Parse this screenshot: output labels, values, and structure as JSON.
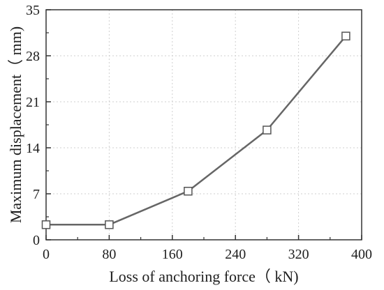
{
  "chart_data": {
    "type": "line",
    "title": "",
    "xlabel": "Loss of anchoring force（ kN)",
    "ylabel": "Maximum displacement（ mm)",
    "x": [
      0,
      80,
      180,
      280,
      380
    ],
    "series": [
      {
        "values": [
          2.3,
          2.3,
          7.4,
          16.7,
          31.0
        ],
        "color": "#666666",
        "marker": "square-open"
      }
    ],
    "xlim": [
      0,
      400
    ],
    "ylim": [
      0,
      35
    ],
    "xticks": [
      0,
      80,
      160,
      240,
      320,
      400
    ],
    "yticks": [
      0,
      7,
      14,
      21,
      28,
      35
    ],
    "grid": true,
    "colors": {
      "axis": "#333333",
      "grid": "#cfcfcf",
      "marker_fill": "#ffffff",
      "marker_stroke": "#555555"
    }
  }
}
